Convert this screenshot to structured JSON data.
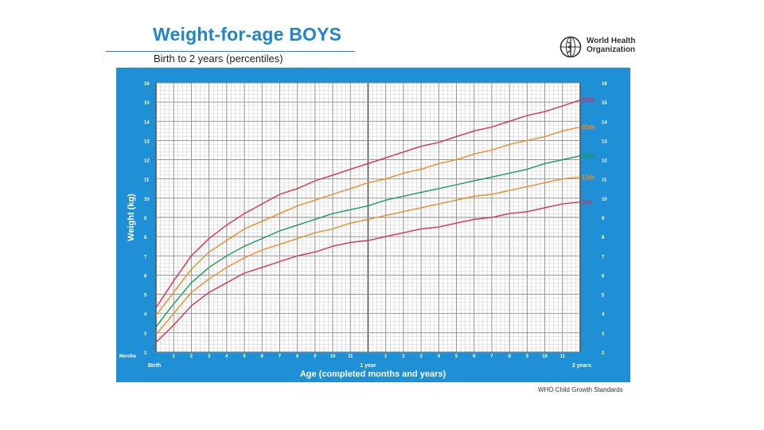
{
  "header": {
    "title": "Weight-for-age BOYS",
    "subtitle": "Birth to 2 years (percentiles)",
    "org_name_line1": "World Health",
    "org_name_line2": "Organization",
    "source": "WHO Child Growth Standards"
  },
  "colors": {
    "panel": "#1f8fd6",
    "grid_bg": "#ffffff",
    "grid_line": "#8a8a8a",
    "p97": "#d9304f",
    "p85": "#f08a24",
    "p50": "#1a9a5a",
    "p15": "#f08a24",
    "p3": "#d9304f"
  },
  "chart_data": {
    "type": "line",
    "title": "Weight-for-age BOYS",
    "subtitle": "Birth to 2 years (percentiles)",
    "xlabel": "Age (completed months and years)",
    "ylabel": "Weight (kg)",
    "xlim": [
      0,
      24
    ],
    "ylim": [
      2,
      16
    ],
    "grid": true,
    "months_label": "Months",
    "x_tick_labels": [
      "1",
      "2",
      "3",
      "4",
      "5",
      "6",
      "7",
      "8",
      "9",
      "10",
      "11",
      "1",
      "2",
      "3",
      "4",
      "5",
      "6",
      "7",
      "8",
      "9",
      "10",
      "11"
    ],
    "x_milestones": [
      {
        "x": 0,
        "label": "Birth"
      },
      {
        "x": 12,
        "label": "1 year"
      },
      {
        "x": 24,
        "label": "2 years"
      }
    ],
    "y_ticks": [
      2,
      3,
      4,
      5,
      6,
      7,
      8,
      9,
      10,
      11,
      12,
      13,
      14,
      15,
      16
    ],
    "x": [
      0,
      1,
      2,
      3,
      4,
      5,
      6,
      7,
      8,
      9,
      10,
      11,
      12,
      13,
      14,
      15,
      16,
      17,
      18,
      19,
      20,
      21,
      22,
      23,
      24
    ],
    "series": [
      {
        "name": "97th",
        "color_key": "p97",
        "values": [
          4.3,
          5.7,
          7.0,
          7.9,
          8.6,
          9.2,
          9.7,
          10.2,
          10.5,
          10.9,
          11.2,
          11.5,
          11.8,
          12.1,
          12.4,
          12.7,
          12.9,
          13.2,
          13.5,
          13.7,
          14.0,
          14.3,
          14.5,
          14.8,
          15.1
        ]
      },
      {
        "name": "85th",
        "color_key": "p85",
        "values": [
          3.9,
          5.1,
          6.3,
          7.2,
          7.8,
          8.4,
          8.8,
          9.2,
          9.6,
          9.9,
          10.2,
          10.5,
          10.8,
          11.0,
          11.3,
          11.5,
          11.8,
          12.0,
          12.3,
          12.5,
          12.8,
          13.0,
          13.2,
          13.5,
          13.7
        ]
      },
      {
        "name": "50th",
        "color_key": "p50",
        "values": [
          3.3,
          4.5,
          5.6,
          6.4,
          7.0,
          7.5,
          7.9,
          8.3,
          8.6,
          8.9,
          9.2,
          9.4,
          9.6,
          9.9,
          10.1,
          10.3,
          10.5,
          10.7,
          10.9,
          11.1,
          11.3,
          11.5,
          11.8,
          12.0,
          12.2
        ]
      },
      {
        "name": "15th",
        "color_key": "p15",
        "values": [
          2.9,
          4.0,
          5.1,
          5.8,
          6.4,
          6.9,
          7.3,
          7.6,
          7.9,
          8.2,
          8.4,
          8.7,
          8.9,
          9.1,
          9.3,
          9.5,
          9.7,
          9.9,
          10.1,
          10.2,
          10.4,
          10.6,
          10.8,
          11.0,
          11.1
        ]
      },
      {
        "name": "3rd",
        "color_key": "p3",
        "values": [
          2.5,
          3.4,
          4.4,
          5.1,
          5.6,
          6.1,
          6.4,
          6.7,
          7.0,
          7.2,
          7.5,
          7.7,
          7.8,
          8.0,
          8.2,
          8.4,
          8.5,
          8.7,
          8.9,
          9.0,
          9.2,
          9.3,
          9.5,
          9.7,
          9.8
        ]
      }
    ]
  }
}
